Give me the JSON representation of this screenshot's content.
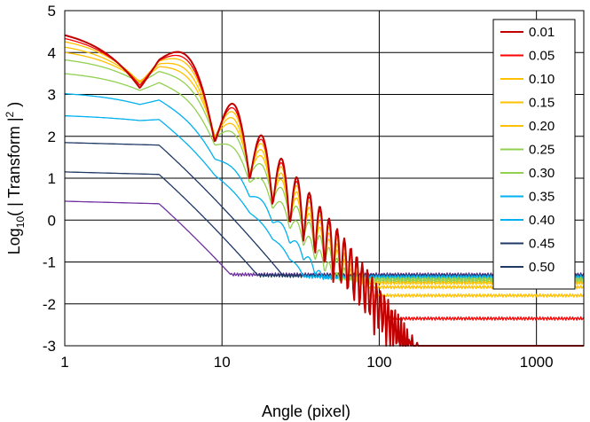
{
  "chart_data": {
    "type": "line",
    "title": "",
    "xlabel": "Angle (pixel)",
    "ylabel_main": "Log",
    "ylabel_sub": "10",
    "ylabel_rest": "( | Transform |",
    "ylabel_sup": "2",
    "ylabel_end": " )",
    "x_scale": "log",
    "xlim": [
      1,
      2000
    ],
    "ylim": [
      -3,
      5
    ],
    "x_ticks": [
      1,
      10,
      100,
      1000
    ],
    "x_tick_labels": [
      "1",
      "10",
      "100",
      "1000"
    ],
    "y_ticks": [
      -3,
      -2,
      -1,
      0,
      1,
      2,
      3,
      4,
      5
    ],
    "y_tick_labels": [
      "-3",
      "-2",
      "-1",
      "0",
      "1",
      "2",
      "3",
      "4",
      "5"
    ],
    "grid": true,
    "legend_position": "top-right",
    "series": [
      {
        "name": "0.01",
        "color": "#c00000",
        "start_y": 4.6,
        "floor_y": -4.0
      },
      {
        "name": "0.05",
        "color": "#ff0000",
        "start_y": 4.5,
        "floor_y": -2.35
      },
      {
        "name": "0.10",
        "color": "#ffc000",
        "start_y": 4.4,
        "floor_y": -1.8
      },
      {
        "name": "0.15",
        "color": "#ffc000",
        "start_y": 4.25,
        "floor_y": -1.6
      },
      {
        "name": "0.20",
        "color": "#ffc000",
        "start_y": 4.1,
        "floor_y": -1.5
      },
      {
        "name": "0.25",
        "color": "#92d050",
        "start_y": 3.9,
        "floor_y": -1.45
      },
      {
        "name": "0.30",
        "color": "#92d050",
        "start_y": 3.55,
        "floor_y": -1.4
      },
      {
        "name": "0.35",
        "color": "#00b0f0",
        "start_y": 3.05,
        "floor_y": -1.38
      },
      {
        "name": "0.40",
        "color": "#00b0f0",
        "start_y": 2.5,
        "floor_y": -1.35
      },
      {
        "name": "0.45",
        "color": "#1f3864",
        "start_y": 1.85,
        "floor_y": -1.33
      },
      {
        "name": "0.50",
        "color": "#1f3864",
        "start_y": 1.15,
        "floor_y": -1.32
      },
      {
        "name": "",
        "color": "#7030a0",
        "start_y": 0.45,
        "floor_y": -1.3
      }
    ]
  }
}
